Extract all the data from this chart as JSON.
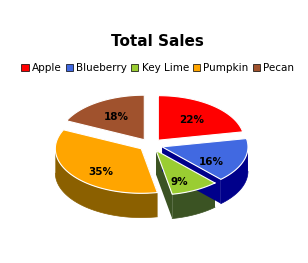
{
  "title": "Total Sales",
  "labels": [
    "Apple",
    "Blueberry",
    "Key Lime",
    "Pumpkin",
    "Pecan"
  ],
  "values": [
    22,
    16,
    9,
    35,
    18
  ],
  "colors_top": [
    "#FF0000",
    "#4169E1",
    "#9ACD32",
    "#FFA500",
    "#A0522D"
  ],
  "colors_side": [
    "#8B0000",
    "#00008B",
    "#3B5323",
    "#8B6000",
    "#5C2E00"
  ],
  "background": "#FFFFFF",
  "title_fontsize": 11,
  "legend_fontsize": 7.5,
  "explode": 0.05,
  "depth": 0.12
}
